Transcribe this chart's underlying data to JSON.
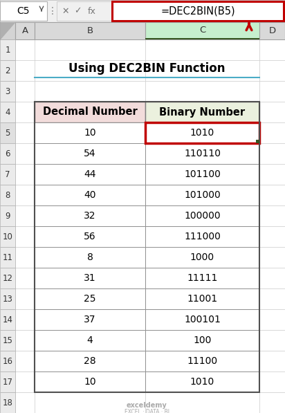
{
  "title": "Using DEC2BIN Function",
  "formula_bar_text": "=DEC2BIN(B5)",
  "cell_ref": "C5",
  "col_headers": [
    "A",
    "B",
    "C",
    "D"
  ],
  "table_header_col1": "Decimal Number",
  "table_header_col2": "Binary Number",
  "decimal_numbers": [
    "10",
    "54",
    "44",
    "40",
    "32",
    "56",
    "8",
    "31",
    "25",
    "37",
    "4",
    "28",
    "10"
  ],
  "binary_numbers": [
    "1010",
    "110110",
    "101100",
    "101000",
    "100000",
    "111000",
    "1000",
    "11111",
    "11001",
    "100101",
    "100",
    "11100",
    "1010"
  ],
  "bg_color": "#FFFFFF",
  "grid_bg": "#FFFFFF",
  "col_header_bg": "#D9D9D9",
  "col_c_header_bg": "#C6EFCE",
  "row_num_bg": "#E8E8E8",
  "formula_bar_bg": "#F2F2F2",
  "formula_bar_border": "#C00000",
  "highlight_cell_border": "#C00000",
  "arrow_color": "#C00000",
  "title_color": "#000000",
  "title_fontsize": 12,
  "data_fontsize": 10,
  "header_fontsize": 10.5,
  "underline_color": "#4BACC6",
  "data_text_color": "#000000",
  "table_header_bg_b": "#F2DCDB",
  "table_header_bg_c": "#EBF1DE",
  "watermark_color": "#AAAAAA",
  "cell_line_color": "#AAAAAA",
  "outer_border_color": "#404040"
}
